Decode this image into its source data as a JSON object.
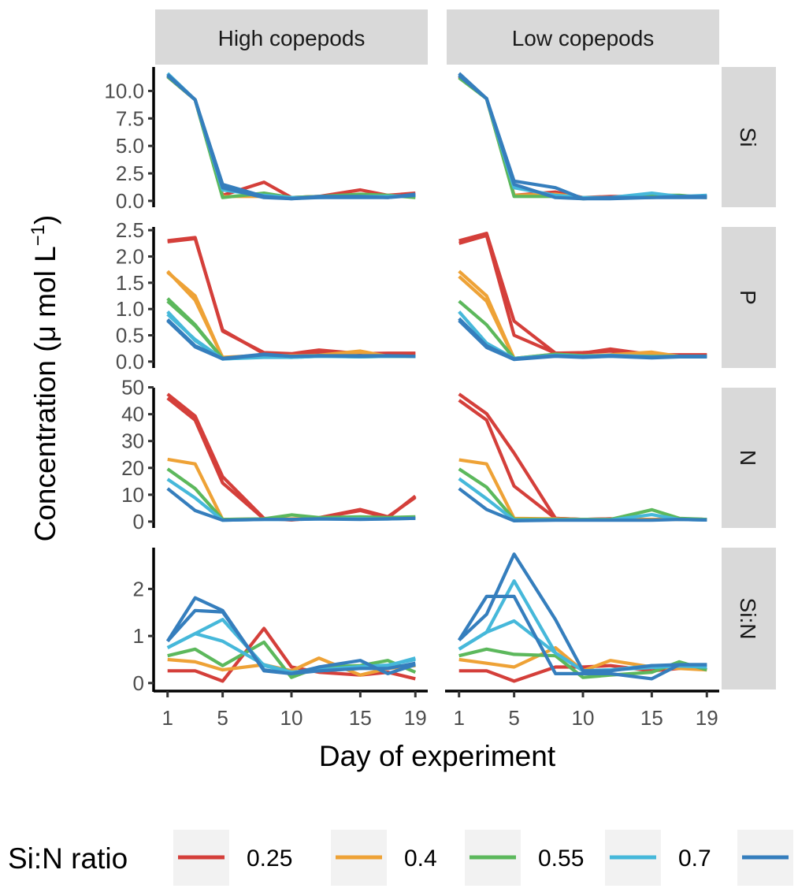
{
  "chart_data": {
    "type": "line",
    "facet_columns": [
      "High copepods",
      "Low copepods"
    ],
    "facet_rows": [
      "Si",
      "P",
      "N",
      "Si:N"
    ],
    "xlabel": "Day of experiment",
    "ylabel": "Concentration (μ mol L",
    "ylabel_sup": "−1",
    "ylabel_end": ")",
    "x_ticks": [
      1,
      5,
      10,
      15,
      19
    ],
    "xlim": [
      1,
      19
    ],
    "x": [
      1,
      3,
      5,
      8,
      10,
      12,
      15,
      17,
      19
    ],
    "rows": [
      {
        "name": "Si",
        "ylim": [
          0,
          11.6
        ],
        "ticks": [
          0,
          2.5,
          5,
          7.5,
          10
        ],
        "tick_labels": [
          "0.0",
          "2.5",
          "5.0",
          "7.5",
          "10.0"
        ]
      },
      {
        "name": "P",
        "ylim": [
          0,
          2.44
        ],
        "ticks": [
          0,
          0.5,
          1,
          1.5,
          2,
          2.5
        ],
        "tick_labels": [
          "0.0",
          "0.5",
          "1.0",
          "1.5",
          "2.0",
          "2.5"
        ]
      },
      {
        "name": "N",
        "ylim": [
          0,
          47.5
        ],
        "ticks": [
          0,
          10,
          20,
          30,
          40,
          50
        ],
        "tick_labels": [
          "0",
          "10",
          "20",
          "30",
          "40",
          "50"
        ]
      },
      {
        "name": "Si:N",
        "ylim": [
          0,
          2.74
        ],
        "ticks": [
          0,
          1,
          2
        ],
        "tick_labels": [
          "0",
          "1",
          "2"
        ]
      }
    ],
    "legend": {
      "title": "Si:N ratio",
      "position": "bottom",
      "entries": [
        {
          "label": "0.25",
          "color": "#D43F3A"
        },
        {
          "label": "0.4",
          "color": "#EEA236"
        },
        {
          "label": "0.55",
          "color": "#5CB85C"
        },
        {
          "label": "0.7",
          "color": "#46B8DA"
        },
        {
          "label": "",
          "color": "#357EBD"
        }
      ]
    },
    "panels": {
      "High copepods": {
        "Si": [
          {
            "ratio": 0,
            "values": [
              11.3,
              9.2,
              0.5,
              1.7,
              0.3,
              0.4,
              1.0,
              0.5,
              0.7
            ]
          },
          {
            "ratio": 1,
            "values": [
              11.4,
              9.2,
              0.4,
              0.4,
              0.3,
              0.4,
              0.5,
              0.4,
              0.4
            ]
          },
          {
            "ratio": 2,
            "values": [
              11.3,
              9.2,
              0.3,
              0.7,
              0.3,
              0.4,
              0.6,
              0.5,
              0.3
            ]
          },
          {
            "ratio": 3,
            "values": [
              11.6,
              9.2,
              1.0,
              0.5,
              0.3,
              0.3,
              0.4,
              0.4,
              0.5
            ]
          },
          {
            "ratio": 4,
            "values": [
              11.4,
              9.2,
              1.5,
              0.4,
              0.2,
              0.3,
              0.3,
              0.3,
              0.6
            ]
          },
          {
            "ratio": 4,
            "values": [
              11.5,
              9.2,
              1.2,
              0.3,
              0.2,
              0.4,
              0.4,
              0.3,
              0.5
            ]
          }
        ],
        "P": [
          {
            "ratio": 0,
            "values": [
              2.3,
              2.36,
              0.58,
              0.17,
              0.15,
              0.22,
              0.15,
              0.16,
              0.16
            ]
          },
          {
            "ratio": 0,
            "values": [
              2.28,
              2.34,
              0.6,
              0.15,
              0.14,
              0.18,
              0.14,
              0.15,
              0.15
            ]
          },
          {
            "ratio": 1,
            "values": [
              1.72,
              1.17,
              0.08,
              0.12,
              0.11,
              0.12,
              0.2,
              0.1,
              0.1
            ]
          },
          {
            "ratio": 1,
            "values": [
              1.7,
              1.25,
              0.07,
              0.11,
              0.1,
              0.11,
              0.18,
              0.1,
              0.1
            ]
          },
          {
            "ratio": 2,
            "values": [
              1.2,
              0.7,
              0.06,
              0.12,
              0.1,
              0.11,
              0.1,
              0.1,
              0.1
            ]
          },
          {
            "ratio": 2,
            "values": [
              1.15,
              0.68,
              0.06,
              0.11,
              0.09,
              0.11,
              0.09,
              0.1,
              0.1
            ]
          },
          {
            "ratio": 3,
            "values": [
              0.95,
              0.4,
              0.05,
              0.08,
              0.08,
              0.1,
              0.09,
              0.1,
              0.1
            ]
          },
          {
            "ratio": 3,
            "values": [
              0.9,
              0.42,
              0.05,
              0.09,
              0.08,
              0.1,
              0.1,
              0.1,
              0.1
            ]
          },
          {
            "ratio": 4,
            "values": [
              0.78,
              0.28,
              0.05,
              0.13,
              0.1,
              0.11,
              0.1,
              0.11,
              0.1
            ]
          },
          {
            "ratio": 4,
            "values": [
              0.8,
              0.3,
              0.06,
              0.14,
              0.1,
              0.11,
              0.11,
              0.11,
              0.1
            ]
          }
        ],
        "N": [
          {
            "ratio": 0,
            "values": [
              47.5,
              39.3,
              16.7,
              1.2,
              0.6,
              1.4,
              4.1,
              1.4,
              9.5
            ]
          },
          {
            "ratio": 0,
            "values": [
              46.0,
              37.8,
              14.4,
              1.0,
              0.8,
              1.4,
              4.5,
              1.8,
              9.0
            ]
          },
          {
            "ratio": 1,
            "values": [
              23.2,
              21.5,
              0.8,
              1.0,
              1.0,
              1.2,
              1.5,
              1.2,
              1.5
            ]
          },
          {
            "ratio": 2,
            "values": [
              19.6,
              12.3,
              0.8,
              1.0,
              2.5,
              1.5,
              1.8,
              1.5,
              1.8
            ]
          },
          {
            "ratio": 3,
            "values": [
              15.8,
              8.8,
              0.5,
              0.8,
              0.8,
              1.0,
              1.0,
              1.0,
              1.2
            ]
          },
          {
            "ratio": 4,
            "values": [
              12.3,
              4.1,
              0.5,
              0.8,
              0.8,
              1.0,
              0.8,
              1.0,
              1.2
            ]
          }
        ],
        "Si:N": [
          {
            "ratio": 0,
            "values": [
              0.26,
              0.26,
              0.04,
              1.16,
              0.34,
              0.23,
              0.17,
              0.23,
              0.09
            ]
          },
          {
            "ratio": 1,
            "values": [
              0.5,
              0.45,
              0.28,
              0.39,
              0.26,
              0.53,
              0.17,
              0.31,
              0.37
            ]
          },
          {
            "ratio": 2,
            "values": [
              0.58,
              0.72,
              0.37,
              0.87,
              0.12,
              0.34,
              0.37,
              0.48,
              0.23
            ]
          },
          {
            "ratio": 3,
            "values": [
              0.75,
              1.05,
              0.89,
              0.39,
              0.23,
              0.26,
              0.31,
              0.37,
              0.53
            ]
          },
          {
            "ratio": 3,
            "values": [
              0.75,
              1.05,
              1.35,
              0.37,
              0.23,
              0.28,
              0.35,
              0.38,
              0.5
            ]
          },
          {
            "ratio": 4,
            "values": [
              0.89,
              1.81,
              1.54,
              0.26,
              0.2,
              0.34,
              0.48,
              0.2,
              0.39
            ]
          },
          {
            "ratio": 4,
            "values": [
              0.89,
              1.54,
              1.51,
              0.28,
              0.2,
              0.26,
              0.31,
              0.31,
              0.42
            ]
          }
        ]
      },
      "Low copepods": {
        "Si": [
          {
            "ratio": 0,
            "values": [
              11.3,
              9.3,
              0.5,
              0.8,
              0.3,
              0.4,
              0.4,
              0.4,
              0.4
            ]
          },
          {
            "ratio": 1,
            "values": [
              11.4,
              9.3,
              0.5,
              0.6,
              0.3,
              0.3,
              0.4,
              0.4,
              0.3
            ]
          },
          {
            "ratio": 2,
            "values": [
              11.2,
              9.3,
              0.4,
              0.4,
              0.2,
              0.3,
              0.5,
              0.5,
              0.3
            ]
          },
          {
            "ratio": 3,
            "values": [
              11.5,
              9.3,
              1.2,
              0.5,
              0.3,
              0.3,
              0.7,
              0.4,
              0.5
            ]
          },
          {
            "ratio": 4,
            "values": [
              11.6,
              9.3,
              1.8,
              1.2,
              0.2,
              0.2,
              0.3,
              0.3,
              0.3
            ]
          },
          {
            "ratio": 4,
            "values": [
              11.4,
              9.3,
              1.5,
              0.3,
              0.2,
              0.3,
              0.3,
              0.4,
              0.4
            ]
          }
        ],
        "P": [
          {
            "ratio": 0,
            "values": [
              2.3,
              2.44,
              0.77,
              0.16,
              0.16,
              0.24,
              0.13,
              0.13,
              0.13
            ]
          },
          {
            "ratio": 0,
            "values": [
              2.25,
              2.4,
              0.5,
              0.16,
              0.17,
              0.2,
              0.12,
              0.12,
              0.12
            ]
          },
          {
            "ratio": 1,
            "values": [
              1.72,
              1.25,
              0.06,
              0.14,
              0.11,
              0.13,
              0.18,
              0.1,
              0.1
            ]
          },
          {
            "ratio": 1,
            "values": [
              1.62,
              1.15,
              0.06,
              0.13,
              0.1,
              0.12,
              0.16,
              0.1,
              0.1
            ]
          },
          {
            "ratio": 2,
            "values": [
              1.15,
              0.7,
              0.06,
              0.14,
              0.11,
              0.11,
              0.1,
              0.1,
              0.1
            ]
          },
          {
            "ratio": 3,
            "values": [
              0.95,
              0.35,
              0.06,
              0.12,
              0.1,
              0.12,
              0.09,
              0.1,
              0.1
            ]
          },
          {
            "ratio": 4,
            "values": [
              0.78,
              0.27,
              0.04,
              0.1,
              0.08,
              0.1,
              0.07,
              0.09,
              0.09
            ]
          },
          {
            "ratio": 4,
            "values": [
              0.82,
              0.3,
              0.05,
              0.11,
              0.09,
              0.11,
              0.08,
              0.1,
              0.1
            ]
          }
        ],
        "N": [
          {
            "ratio": 0,
            "values": [
              47.5,
              40.2,
              25.5,
              1.2,
              0.8,
              1.0,
              0.8,
              1.0,
              0.8
            ]
          },
          {
            "ratio": 0,
            "values": [
              45.2,
              37.8,
              13.2,
              1.2,
              0.8,
              1.0,
              0.8,
              1.0,
              0.8
            ]
          },
          {
            "ratio": 1,
            "values": [
              23.0,
              21.5,
              1.2,
              1.0,
              0.8,
              0.8,
              0.8,
              0.8,
              0.8
            ]
          },
          {
            "ratio": 2,
            "values": [
              19.6,
              12.8,
              0.8,
              0.8,
              0.8,
              0.8,
              4.4,
              1.2,
              0.8
            ]
          },
          {
            "ratio": 3,
            "values": [
              16.0,
              8.5,
              0.5,
              0.6,
              0.6,
              0.6,
              2.6,
              0.8,
              0.6
            ]
          },
          {
            "ratio": 4,
            "values": [
              12.3,
              4.5,
              0.3,
              0.5,
              0.5,
              0.5,
              0.5,
              0.8,
              0.6
            ]
          }
        ],
        "Si:N": [
          {
            "ratio": 0,
            "values": [
              0.26,
              0.26,
              0.04,
              0.34,
              0.34,
              0.37,
              0.26,
              0.31,
              0.31
            ]
          },
          {
            "ratio": 1,
            "values": [
              0.5,
              0.42,
              0.34,
              0.75,
              0.26,
              0.48,
              0.34,
              0.31,
              0.28
            ]
          },
          {
            "ratio": 2,
            "values": [
              0.58,
              0.72,
              0.61,
              0.58,
              0.12,
              0.17,
              0.23,
              0.45,
              0.28
            ]
          },
          {
            "ratio": 3,
            "values": [
              0.72,
              1.08,
              1.32,
              0.64,
              0.26,
              0.28,
              0.37,
              0.37,
              0.34
            ]
          },
          {
            "ratio": 3,
            "values": [
              0.72,
              1.08,
              2.17,
              0.64,
              0.26,
              0.28,
              0.33,
              0.36,
              0.34
            ]
          },
          {
            "ratio": 4,
            "values": [
              0.91,
              1.46,
              2.74,
              1.35,
              0.26,
              0.26,
              0.37,
              0.39,
              0.39
            ]
          },
          {
            "ratio": 4,
            "values": [
              0.91,
              1.84,
              1.84,
              0.2,
              0.2,
              0.2,
              0.09,
              0.39,
              0.39
            ]
          }
        ]
      }
    }
  }
}
